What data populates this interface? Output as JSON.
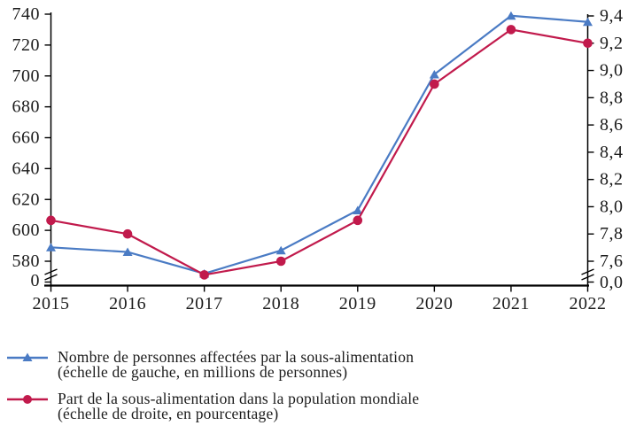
{
  "chart_data": {
    "type": "line",
    "title": "",
    "categories": [
      "2015",
      "2016",
      "2017",
      "2018",
      "2019",
      "2020",
      "2021",
      "2022"
    ],
    "series": [
      {
        "name": "Nombre de personnes affectées par la sous-alimentation (échelle de gauche, en millions de personnes)",
        "axis": "left",
        "marker": "triangle",
        "color": "#4A7BC4",
        "values": [
          589,
          586,
          572,
          587,
          613,
          701,
          739,
          735
        ]
      },
      {
        "name": "Part de la sous-alimentation dans la population mondiale (échelle de droite, en pourcentage)",
        "axis": "right",
        "marker": "circle",
        "color": "#C11A4C",
        "values": [
          7.9,
          7.8,
          7.5,
          7.6,
          7.9,
          8.9,
          9.3,
          9.2
        ]
      }
    ],
    "left_axis": {
      "ticks": [
        740,
        720,
        700,
        680,
        660,
        640,
        620,
        600,
        580
      ],
      "min": 580,
      "max": 740,
      "zero_label": "0",
      "axis_break": true
    },
    "right_axis": {
      "ticks": [
        9.4,
        9.2,
        9.0,
        8.8,
        8.6,
        8.4,
        8.2,
        8.0,
        7.8,
        7.6
      ],
      "min": 7.6,
      "max": 9.4,
      "zero_label": "0,0",
      "decimal_separator": ",",
      "axis_break": true
    },
    "grid": false,
    "legend_position": "bottom-left",
    "axis_color": "#000000",
    "text_color": "#1c1c1c"
  },
  "legend": {
    "items": [
      {
        "line1": "Nombre de personnes affectées par la sous-alimentation",
        "line2": "(échelle de gauche, en millions de personnes)"
      },
      {
        "line1": "Part de la sous-alimentation dans la population mondiale",
        "line2": "(échelle de droite, en pourcentage)"
      }
    ]
  }
}
